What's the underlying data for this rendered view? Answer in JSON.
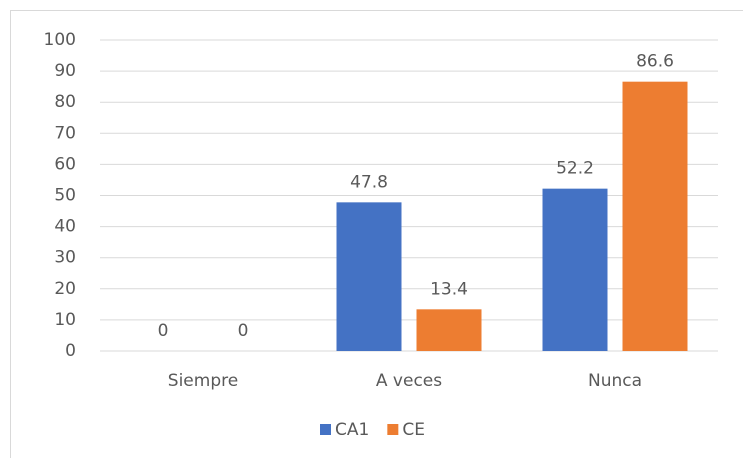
{
  "chart_data": {
    "type": "bar",
    "categories": [
      "Siempre",
      "A veces",
      "Nunca"
    ],
    "series": [
      {
        "name": "CA1",
        "color": "#4472c4",
        "values": [
          0,
          47.8,
          52.2
        ]
      },
      {
        "name": "CE",
        "color": "#ed7d31",
        "values": [
          0,
          13.4,
          86.6
        ]
      }
    ],
    "ylim": [
      0,
      100
    ],
    "yticks": [
      0,
      10,
      20,
      30,
      40,
      50,
      60,
      70,
      80,
      90,
      100
    ],
    "grid": true,
    "legend": "bottom"
  }
}
